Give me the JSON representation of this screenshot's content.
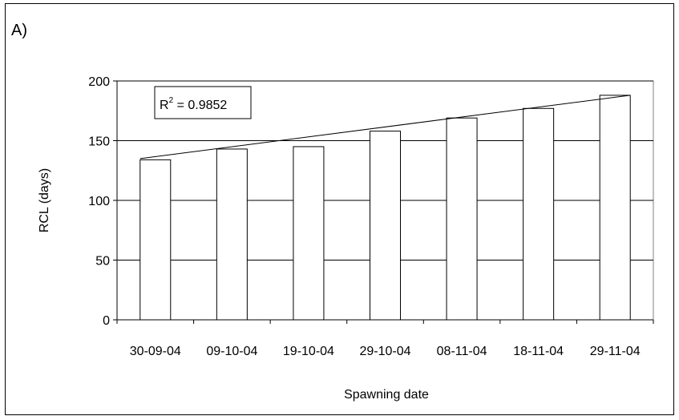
{
  "panel_label": "A)",
  "chart_data": {
    "type": "bar",
    "categories": [
      "30-09-04",
      "09-10-04",
      "19-10-04",
      "29-10-04",
      "08-11-04",
      "18-11-04",
      "29-11-04"
    ],
    "series": [
      {
        "values": [
          134,
          143,
          145,
          158,
          169,
          177,
          188
        ]
      }
    ],
    "trendline": {
      "type": "linear",
      "start": 135,
      "end": 188,
      "r2_label": "R",
      "r2_exponent": "2",
      "r2_value": " = 0.9852"
    },
    "xlabel": "Spawning date",
    "ylabel": "RCL (days)",
    "ylim": [
      0,
      200
    ],
    "yticks": [
      0,
      50,
      100,
      150,
      200
    ],
    "grid": true,
    "colors": {
      "bar_fill": "#ffffff",
      "bar_stroke": "#000000",
      "grid": "#000000",
      "plot_bg": "#ffffff"
    }
  }
}
